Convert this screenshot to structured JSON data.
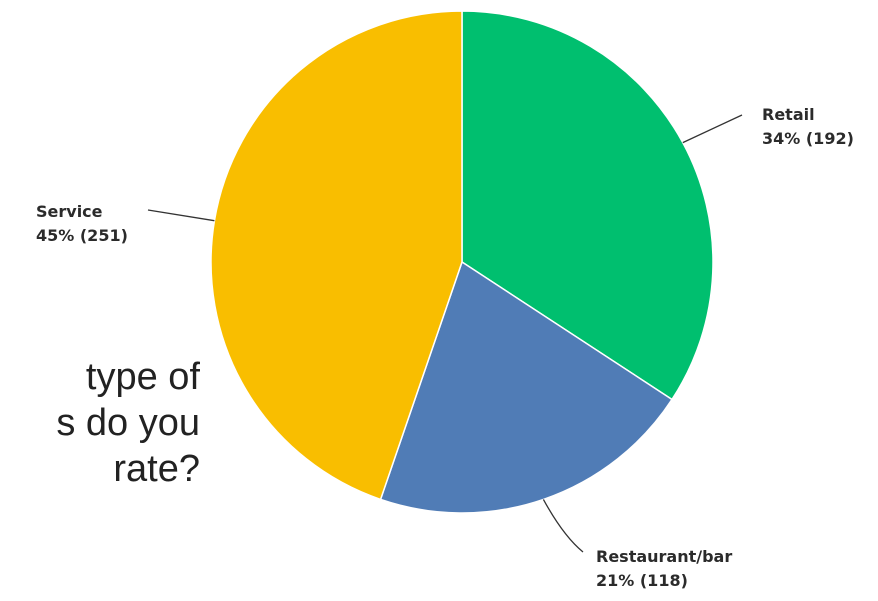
{
  "question_fragment": {
    "lines": [
      "type of",
      "s do you",
      "rate?"
    ]
  },
  "chart_data": {
    "type": "pie",
    "start": "12 o'clock, clockwise",
    "slices": [
      {
        "label": "Retail",
        "percent": 34,
        "count": 192,
        "display": "34% (192)",
        "color": "#00BF6F"
      },
      {
        "label": "Restaurant/bar",
        "percent": 21,
        "count": 118,
        "display": "21% (118)",
        "color": "#507CB6"
      },
      {
        "label": "Service",
        "percent": 45,
        "count": 251,
        "display": "45% (251)",
        "color": "#F9BE00"
      }
    ]
  }
}
